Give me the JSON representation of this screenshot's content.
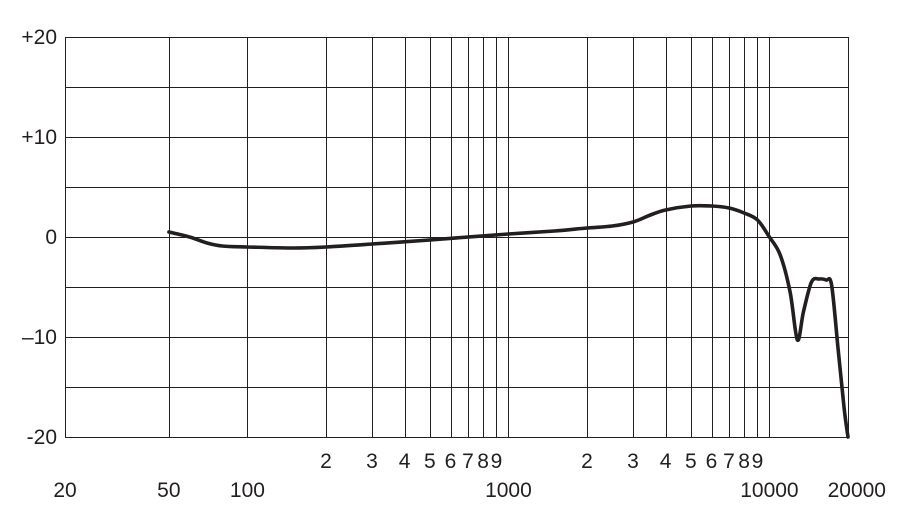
{
  "chart_data": {
    "type": "line",
    "x_scale": "log",
    "xlim": [
      20,
      20000
    ],
    "ylim": [
      -20,
      20
    ],
    "grid": true,
    "legend": "none",
    "title": "",
    "xlabel": "",
    "ylabel": "",
    "y_ticks": [
      {
        "value": 20,
        "label": "+20"
      },
      {
        "value": 15,
        "label": ""
      },
      {
        "value": 10,
        "label": "+10"
      },
      {
        "value": 5,
        "label": ""
      },
      {
        "value": 0,
        "label": "0"
      },
      {
        "value": -5,
        "label": ""
      },
      {
        "value": -10,
        "label": "–10"
      },
      {
        "value": -15,
        "label": ""
      },
      {
        "value": -20,
        "label": "-20"
      }
    ],
    "x_major_labels": [
      {
        "value": 20,
        "label": "20"
      },
      {
        "value": 50,
        "label": "50"
      },
      {
        "value": 100,
        "label": "100"
      },
      {
        "value": 1000,
        "label": "1000"
      },
      {
        "value": 10000,
        "label": "10000"
      },
      {
        "value": 20000,
        "label": "20000"
      }
    ],
    "x_minor_labels": [
      {
        "value": 200,
        "label": "2"
      },
      {
        "value": 300,
        "label": "3"
      },
      {
        "value": 400,
        "label": "4"
      },
      {
        "value": 500,
        "label": "5"
      },
      {
        "value": 600,
        "label": "6"
      },
      {
        "value": 700,
        "label": "7"
      },
      {
        "value": 800,
        "label": "8"
      },
      {
        "value": 900,
        "label": "9"
      },
      {
        "value": 2000,
        "label": "2"
      },
      {
        "value": 3000,
        "label": "3"
      },
      {
        "value": 4000,
        "label": "4"
      },
      {
        "value": 5000,
        "label": "5"
      },
      {
        "value": 6000,
        "label": "6"
      },
      {
        "value": 7000,
        "label": "7"
      },
      {
        "value": 8000,
        "label": "8"
      },
      {
        "value": 9000,
        "label": "9"
      }
    ],
    "x_gridlines": [
      20,
      50,
      100,
      200,
      300,
      400,
      500,
      600,
      700,
      800,
      900,
      1000,
      2000,
      3000,
      4000,
      5000,
      6000,
      7000,
      8000,
      9000,
      10000,
      20000
    ],
    "series": [
      {
        "points": [
          {
            "x": 50,
            "y": 0.5
          },
          {
            "x": 60,
            "y": 0.0
          },
          {
            "x": 70,
            "y": -0.6
          },
          {
            "x": 80,
            "y": -0.9
          },
          {
            "x": 100,
            "y": -1.0
          },
          {
            "x": 150,
            "y": -1.1
          },
          {
            "x": 200,
            "y": -1.0
          },
          {
            "x": 300,
            "y": -0.7
          },
          {
            "x": 500,
            "y": -0.3
          },
          {
            "x": 700,
            "y": 0.0
          },
          {
            "x": 1000,
            "y": 0.3
          },
          {
            "x": 1500,
            "y": 0.6
          },
          {
            "x": 2000,
            "y": 0.9
          },
          {
            "x": 2500,
            "y": 1.1
          },
          {
            "x": 3000,
            "y": 1.5
          },
          {
            "x": 3500,
            "y": 2.2
          },
          {
            "x": 4000,
            "y": 2.7
          },
          {
            "x": 5000,
            "y": 3.1
          },
          {
            "x": 6000,
            "y": 3.1
          },
          {
            "x": 7000,
            "y": 2.9
          },
          {
            "x": 8000,
            "y": 2.4
          },
          {
            "x": 9000,
            "y": 1.7
          },
          {
            "x": 10000,
            "y": 0.0
          },
          {
            "x": 11000,
            "y": -1.8
          },
          {
            "x": 12000,
            "y": -5.5
          },
          {
            "x": 12800,
            "y": -10.3
          },
          {
            "x": 13500,
            "y": -7.5
          },
          {
            "x": 14500,
            "y": -4.5
          },
          {
            "x": 15500,
            "y": -4.2
          },
          {
            "x": 16500,
            "y": -4.3
          },
          {
            "x": 17300,
            "y": -4.8
          },
          {
            "x": 18300,
            "y": -11.0
          },
          {
            "x": 19300,
            "y": -17.0
          },
          {
            "x": 20000,
            "y": -20.0
          }
        ]
      }
    ]
  }
}
